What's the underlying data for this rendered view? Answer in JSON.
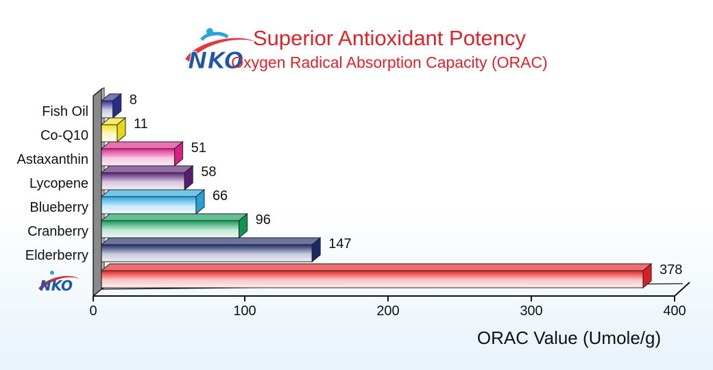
{
  "header": {
    "title": "Superior Antioxidant Potency",
    "subtitle": "Oxygen Radical Absorption Capacity (ORAC)",
    "logo_text": "NKO"
  },
  "chart_data": {
    "type": "bar",
    "orientation": "horizontal",
    "style": "3d",
    "categories": [
      "Fish Oil",
      "Co-Q10",
      "Astaxanthin",
      "Lycopene",
      "Blueberry",
      "Cranberry",
      "Elderberry",
      "NKO"
    ],
    "values": [
      8,
      11,
      51,
      58,
      66,
      96,
      147,
      378
    ],
    "value_labels": [
      "8",
      "11",
      "51",
      "58",
      "66",
      "96",
      "147",
      "378"
    ],
    "colors": [
      "#2b2f8f",
      "#f2e21a",
      "#e0238a",
      "#5a1f78",
      "#27a9e1",
      "#0f9d58",
      "#1f2a6b",
      "#e32222"
    ],
    "xlabel": "ORAC Value (Umole/g)",
    "xlim": [
      0,
      400
    ],
    "xticks": [
      "0",
      "100",
      "200",
      "300",
      "400"
    ],
    "grid": false,
    "legend": "none"
  }
}
